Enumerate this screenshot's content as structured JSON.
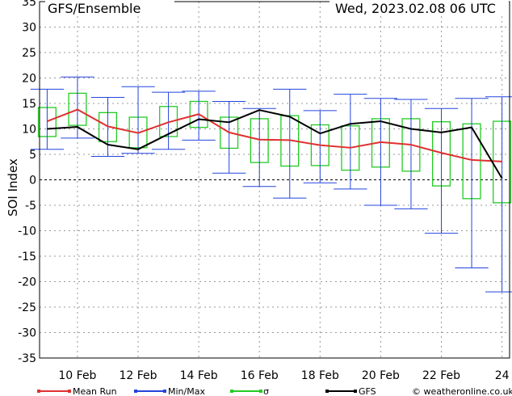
{
  "header": {
    "title": "GFS/Ensemble",
    "datetime": "Wed, 2023.02.08   06 UTC"
  },
  "legend": {
    "mean": "Mean Run",
    "minmax": "Min/Max",
    "sigma": "σ",
    "gfs": "GFS",
    "credit": "© weatheronline.co.uk"
  },
  "colors": {
    "mean": "#e03030",
    "minmax": "#2244dd",
    "sigma": "#22cc22",
    "gfs": "#000000",
    "grid": "#999999"
  },
  "chart_data": {
    "type": "line",
    "xlabel": "",
    "ylabel": "SOI Index",
    "ylim": [
      -35,
      35
    ],
    "yticks": [
      35,
      30,
      25,
      20,
      15,
      10,
      5,
      0,
      -5,
      -10,
      -15,
      -20,
      -25,
      -30,
      -35
    ],
    "xlim": [
      8.75,
      24.25
    ],
    "xticks": [
      {
        "x": 10,
        "label": "10 Feb"
      },
      {
        "x": 12,
        "label": "12 Feb"
      },
      {
        "x": 14,
        "label": "14 Feb"
      },
      {
        "x": 16,
        "label": "16 Feb"
      },
      {
        "x": 18,
        "label": "18 Feb"
      },
      {
        "x": 20,
        "label": "20 Feb"
      },
      {
        "x": 22,
        "label": "22 Feb"
      },
      {
        "x": 24,
        "label": "24"
      }
    ],
    "grid": true,
    "x": [
      9,
      10,
      11,
      12,
      13,
      14,
      15,
      16,
      17,
      18,
      19,
      20,
      21,
      22,
      23,
      24
    ],
    "series": [
      {
        "name": "Mean Run",
        "values": [
          11.5,
          13.8,
          10.5,
          9.2,
          11.3,
          12.9,
          9.3,
          7.9,
          7.8,
          6.8,
          6.3,
          7.4,
          6.9,
          5.3,
          3.9,
          3.6
        ]
      },
      {
        "name": "GFS",
        "values": [
          10.0,
          10.4,
          6.9,
          6.0,
          9.0,
          11.9,
          11.3,
          13.7,
          12.4,
          9.1,
          11.0,
          11.5,
          10.0,
          9.3,
          10.3,
          0.3
        ]
      },
      {
        "name": "Min/Max",
        "min": [
          6.0,
          8.2,
          4.6,
          5.2,
          6.0,
          7.8,
          1.3,
          -1.3,
          -3.6,
          -0.6,
          -1.8,
          -5.0,
          -5.7,
          -10.5,
          -17.3,
          -22.0
        ],
        "max": [
          17.8,
          20.2,
          16.2,
          18.3,
          17.2,
          17.4,
          15.4,
          14.0,
          17.8,
          13.6,
          16.8,
          16.0,
          15.8,
          14.0,
          16.0,
          16.3
        ]
      },
      {
        "name": "σ",
        "low": [
          8.5,
          10.7,
          7.5,
          6.3,
          8.5,
          10.3,
          6.2,
          3.4,
          2.7,
          2.8,
          1.9,
          2.5,
          1.7,
          -1.2,
          -3.7,
          -4.5
        ],
        "high": [
          14.2,
          17.0,
          13.2,
          12.3,
          14.4,
          15.4,
          12.3,
          12.0,
          12.6,
          10.8,
          10.6,
          12.0,
          12.0,
          11.4,
          11.0,
          11.5
        ]
      }
    ]
  }
}
